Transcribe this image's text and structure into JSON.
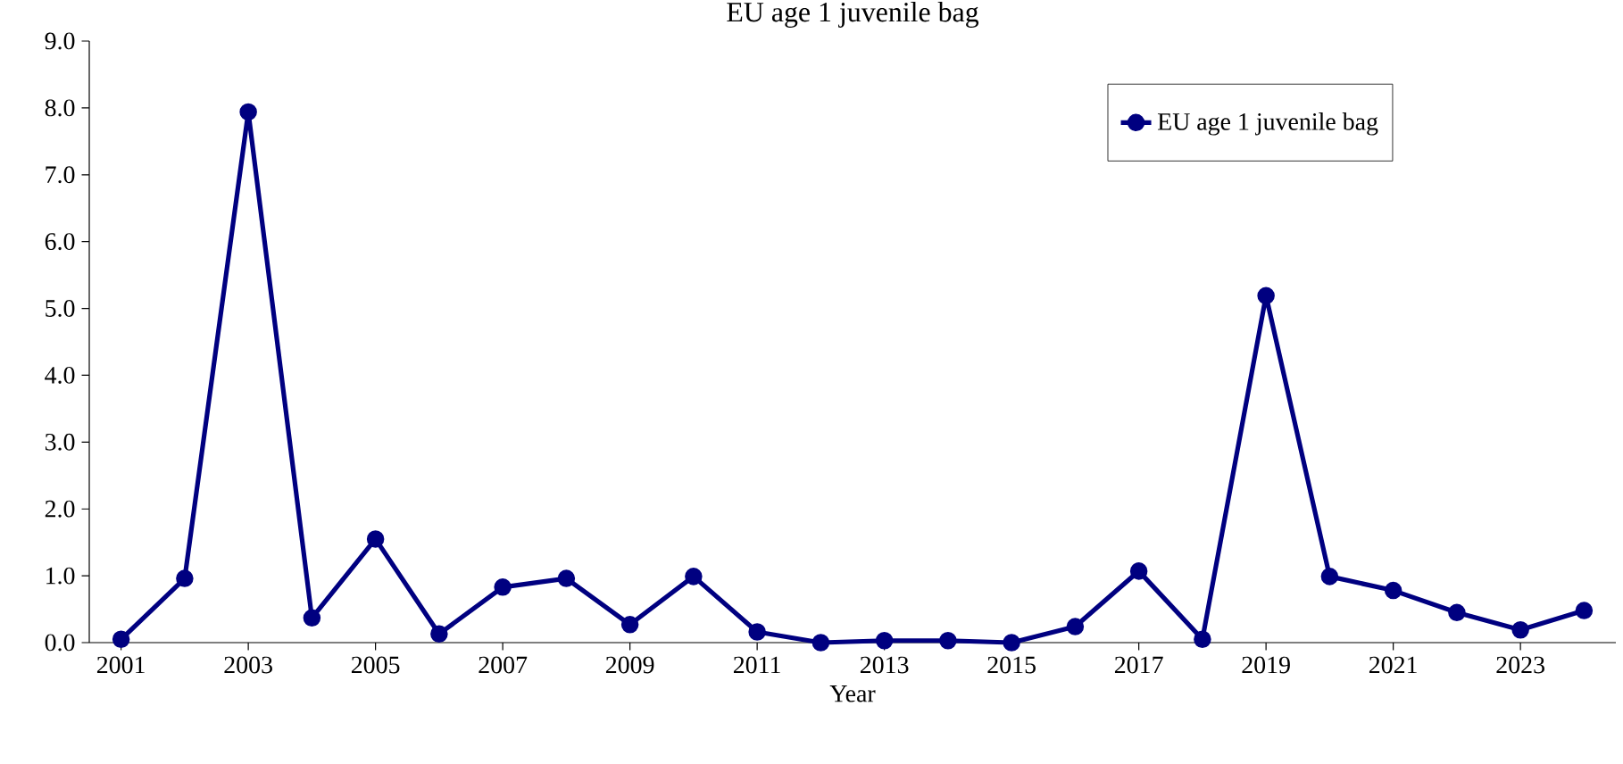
{
  "chart_data": {
    "type": "line",
    "title": "EU age 1 juvenile bag",
    "xlabel": "Year",
    "x": [
      2001,
      2002,
      2003,
      2004,
      2005,
      2006,
      2007,
      2008,
      2009,
      2010,
      2011,
      2012,
      2013,
      2014,
      2015,
      2016,
      2017,
      2018,
      2019,
      2020,
      2021,
      2022,
      2023,
      2024
    ],
    "series": [
      {
        "name": "EU age 1 juvenile bag",
        "color": "#000080",
        "values": [
          0.05,
          0.96,
          7.94,
          0.37,
          1.55,
          0.13,
          0.83,
          0.96,
          0.27,
          0.99,
          0.16,
          0.0,
          0.03,
          0.03,
          0.0,
          0.24,
          1.07,
          0.05,
          5.19,
          0.99,
          0.78,
          0.45,
          0.19,
          0.48
        ]
      }
    ],
    "xlim": [
      2000.5,
      2024.5
    ],
    "ylim": [
      0,
      9
    ],
    "xticks": [
      2001,
      2003,
      2005,
      2007,
      2009,
      2011,
      2013,
      2015,
      2017,
      2019,
      2021,
      2023
    ],
    "yticks": [
      {
        "value": 0,
        "label": "0.0"
      },
      {
        "value": 1,
        "label": "1.0"
      },
      {
        "value": 2,
        "label": "2.0"
      },
      {
        "value": 3,
        "label": "3.0"
      },
      {
        "value": 4,
        "label": "4.0"
      },
      {
        "value": 5,
        "label": "5.0"
      },
      {
        "value": 6,
        "label": "6.0"
      },
      {
        "value": 7,
        "label": "7.0"
      },
      {
        "value": 8,
        "label": "8.0"
      },
      {
        "value": 9,
        "label": "9.0"
      }
    ],
    "legend": "top right",
    "marker": "circle"
  }
}
